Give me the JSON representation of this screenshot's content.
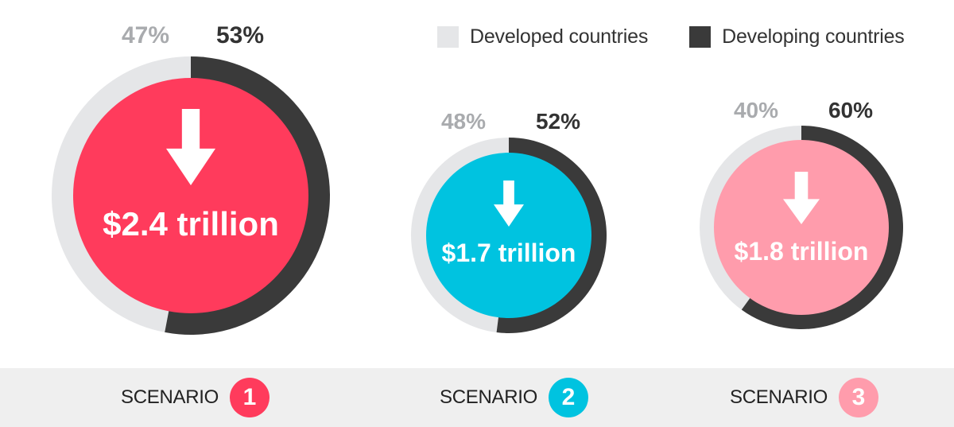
{
  "colors": {
    "developed": "#e5e6e8",
    "developing": "#3a3a3a",
    "developed_text": "#a9abae",
    "developing_text": "#333333",
    "band": "#efefef"
  },
  "legend": {
    "developed_label": "Developed countries",
    "developing_label": "Developing countries"
  },
  "chart_data": {
    "type": "pie",
    "series_names": [
      "Developed countries",
      "Developing countries"
    ],
    "scenarios": [
      {
        "label": "SCENARIO",
        "number": "1",
        "amount_label": "$2.4 trillion",
        "amount": 2.4,
        "unit": "trillion USD",
        "developed_pct": 47,
        "developing_pct": 53,
        "developed_label": "47%",
        "developing_label": "53%",
        "color": "#ff3b5c"
      },
      {
        "label": "SCENARIO",
        "number": "2",
        "amount_label": "$1.7 trillion",
        "amount": 1.7,
        "unit": "trillion USD",
        "developed_pct": 48,
        "developing_pct": 52,
        "developed_label": "48%",
        "developing_label": "52%",
        "color": "#00c3e0"
      },
      {
        "label": "SCENARIO",
        "number": "3",
        "amount_label": "$1.8 trillion",
        "amount": 1.8,
        "unit": "trillion USD",
        "developed_pct": 40,
        "developing_pct": 60,
        "developed_label": "40%",
        "developing_label": "60%",
        "color": "#ff9cac"
      }
    ]
  }
}
